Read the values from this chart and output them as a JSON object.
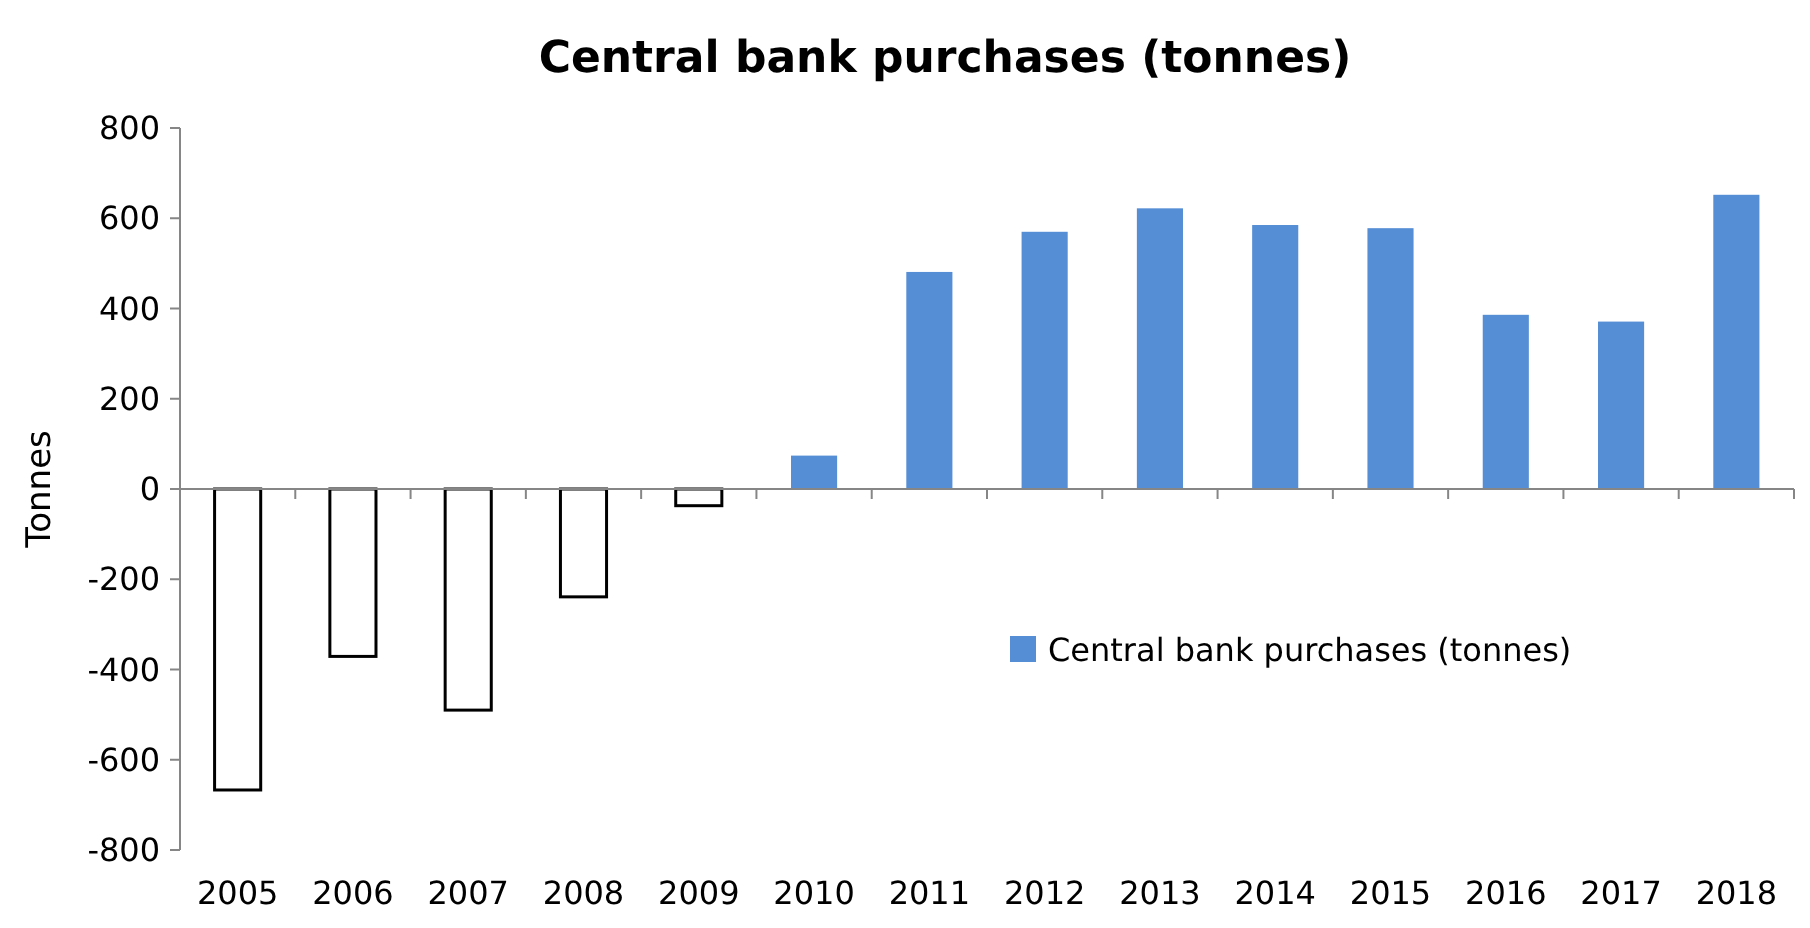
{
  "chart_data": {
    "type": "bar",
    "title": "Central bank purchases (tonnes)",
    "ylabel": "Tonnes",
    "categories": [
      "2005",
      "2006",
      "2007",
      "2008",
      "2009",
      "2010",
      "2011",
      "2012",
      "2013",
      "2014",
      "2015",
      "2016",
      "2017",
      "2018"
    ],
    "series": [
      {
        "name": "Central bank purchases (tonnes)",
        "color": "#558ed5",
        "values": [
          -667,
          -371,
          -490,
          -239,
          -37,
          74,
          481,
          570,
          622,
          585,
          578,
          386,
          371,
          652
        ],
        "colors": [
          "#ffffff",
          "#ffffff",
          "#ffffff",
          "#ffffff",
          "#ffffff",
          "#558ed5",
          "#558ed5",
          "#558ed5",
          "#558ed5",
          "#558ed5",
          "#558ed5",
          "#558ed5",
          "#558ed5",
          "#558ed5"
        ]
      }
    ],
    "ylim": [
      -800,
      800
    ],
    "yticks": [
      -800,
      -600,
      -400,
      -200,
      0,
      200,
      400,
      600,
      800
    ],
    "legend": "right"
  }
}
